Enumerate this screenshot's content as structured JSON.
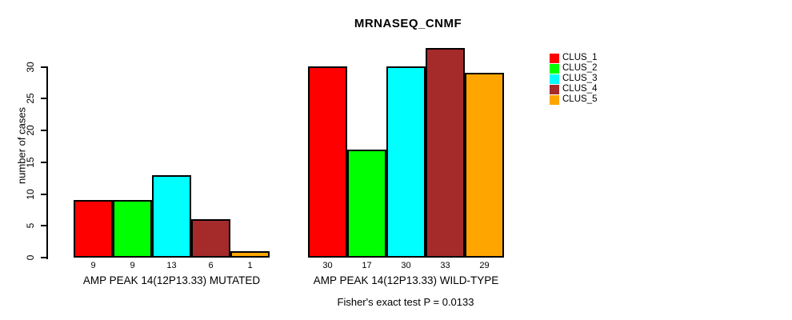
{
  "chart_data": {
    "type": "bar",
    "title": "MRNASEQ_CNMF",
    "xlabel": "",
    "ylabel": "number of cases",
    "ylim": [
      0,
      33
    ],
    "yticks": [
      0,
      5,
      10,
      15,
      20,
      25,
      30
    ],
    "grid": false,
    "legend_position": "right",
    "series_names": [
      "CLUS_1",
      "CLUS_2",
      "CLUS_3",
      "CLUS_4",
      "CLUS_5"
    ],
    "colors": [
      "#FF0000",
      "#00FF00",
      "#00FFFF",
      "#A52A2A",
      "#FFA500"
    ],
    "groups": [
      {
        "label": "AMP PEAK 14(12P13.33) MUTATED",
        "values": [
          9,
          9,
          13,
          6,
          1
        ]
      },
      {
        "label": "AMP PEAK 14(12P13.33) WILD-TYPE",
        "values": [
          30,
          17,
          30,
          33,
          29
        ]
      }
    ],
    "bar_value_labels_shown": true,
    "annotation": "Fisher's exact test P = 0.0133",
    "legend": {
      "entries": [
        {
          "label": "CLUS_1",
          "color": "#FF0000"
        },
        {
          "label": "CLUS_2",
          "color": "#00FF00"
        },
        {
          "label": "CLUS_3",
          "color": "#00FFFF"
        },
        {
          "label": "CLUS_4",
          "color": "#A52A2A"
        },
        {
          "label": "CLUS_5",
          "color": "#FFA500"
        }
      ]
    },
    "axis_color": "#000000",
    "bar_border_color": "#000000",
    "background_color": "#FFFFFF"
  }
}
